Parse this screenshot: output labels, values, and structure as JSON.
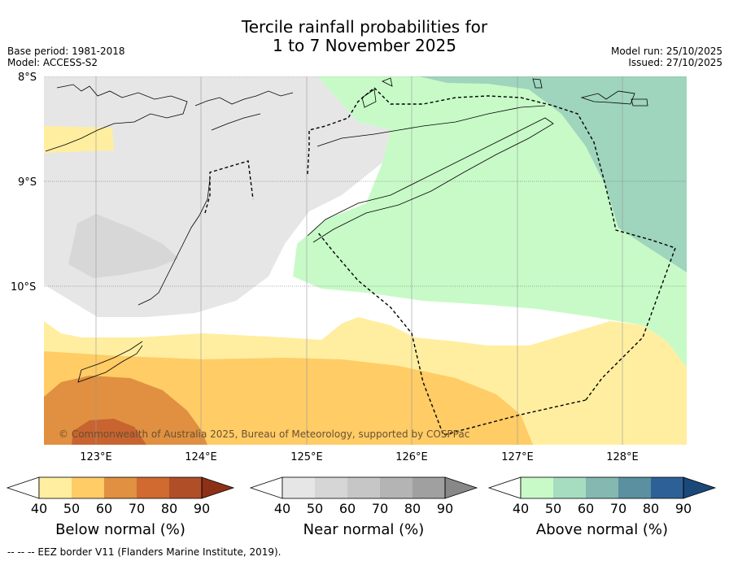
{
  "title": {
    "line1": "Tercile rainfall probabilities for",
    "line2": "1 to 7 November 2025"
  },
  "meta_left": {
    "base_period": "Base period: 1981-2018",
    "model": "Model: ACCESS-S2"
  },
  "meta_right": {
    "model_run": "Model run: 25/10/2025",
    "issued": "Issued: 27/10/2025"
  },
  "map": {
    "lat_labels": [
      "8°S",
      "9°S",
      "10°S"
    ],
    "lon_labels": [
      "123°E",
      "124°E",
      "125°E",
      "126°E",
      "127°E",
      "128°E"
    ],
    "copyright": "© Commonwealth of Australia 2025, Bureau of Meteorology, supported by COSPPac",
    "colors": {
      "below_50": "#ffeea0",
      "below_60": "#ffcc66",
      "below_70": "#e09040",
      "below_80": "#c86430",
      "near_50": "#e6e6e6",
      "near_60": "#d7d7d7",
      "above_50": "#c8fac8",
      "above_60": "#9fd4bd"
    }
  },
  "colorbars": [
    {
      "label": "Below normal (%)",
      "ticks": [
        "40",
        "50",
        "60",
        "70",
        "80",
        "90"
      ],
      "colors": [
        "#ffeea0",
        "#ffcc66",
        "#e09040",
        "#d06a30",
        "#b04e28"
      ],
      "end_color": "#8c3018"
    },
    {
      "label": "Near normal (%)",
      "ticks": [
        "40",
        "50",
        "60",
        "70",
        "80",
        "90"
      ],
      "colors": [
        "#e6e6e6",
        "#d6d6d6",
        "#c6c6c6",
        "#b4b4b4",
        "#a0a0a0"
      ],
      "end_color": "#888888"
    },
    {
      "label": "Above normal (%)",
      "ticks": [
        "40",
        "50",
        "60",
        "70",
        "80",
        "90"
      ],
      "colors": [
        "#c8fac8",
        "#a6dcc0",
        "#84b8b0",
        "#5a90a0",
        "#2e6098"
      ],
      "end_color": "#1a4878"
    }
  ],
  "footer": "--  --  -- EEZ border V11 (Flanders Marine Institute, 2019)."
}
